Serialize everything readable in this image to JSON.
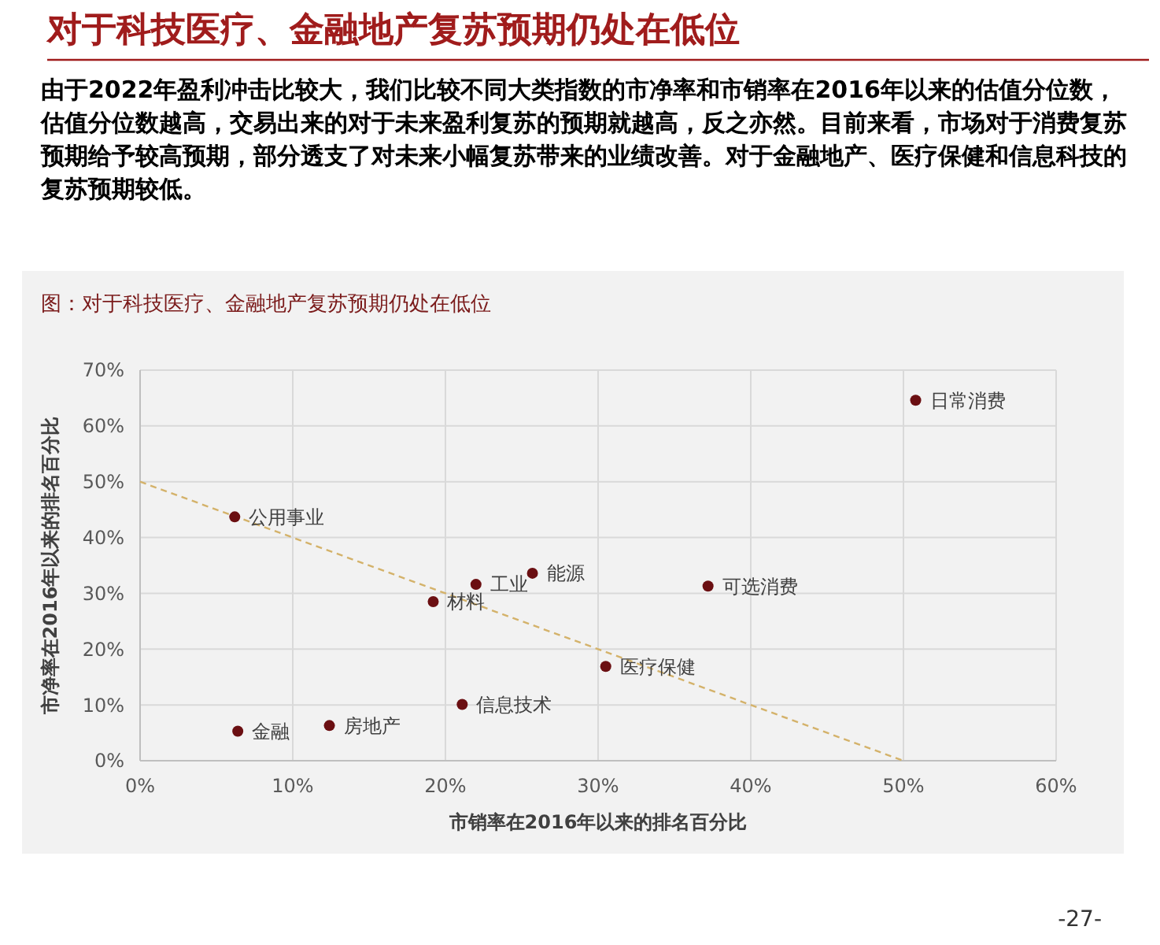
{
  "chart_data": {
    "type": "scatter",
    "title": "对于科技医疗、金融地产复苏预期仍处在低位",
    "subtitle": "由于2022年盈利冲击比较大，我们比较不同大类指数的市净率和市销率在2016年以来的估值分位数，估值分位数越高，交易出来的对于未来盈利复苏的预期就越高，反之亦然。目前来看，市场对于消费复苏预期给予较高预期，部分透支了对未来小幅复苏带来的业绩改善。对于金融地产、医疗保健和信息科技的复苏预期较低。",
    "xlabel": "市销率在2016年以来的排名百分比",
    "ylabel": "市净率在2016年以来的排名百分比",
    "xlim": [
      0,
      60
    ],
    "ylim": [
      0,
      70
    ],
    "xticks": [
      {
        "value": 0,
        "label": "0%"
      },
      {
        "value": 10,
        "label": "10%"
      },
      {
        "value": 20,
        "label": "20%"
      },
      {
        "value": 30,
        "label": "30%"
      },
      {
        "value": 40,
        "label": "40%"
      },
      {
        "value": 50,
        "label": "50%"
      },
      {
        "value": 60,
        "label": "60%"
      }
    ],
    "yticks": [
      {
        "value": 0,
        "label": "0%"
      },
      {
        "value": 10,
        "label": "10%"
      },
      {
        "value": 20,
        "label": "20%"
      },
      {
        "value": 30,
        "label": "30%"
      },
      {
        "value": 40,
        "label": "40%"
      },
      {
        "value": 50,
        "label": "50%"
      },
      {
        "value": 60,
        "label": "60%"
      },
      {
        "value": 70,
        "label": "70%"
      }
    ],
    "grid": true,
    "marker": "circle",
    "series": [
      {
        "color": "#6b0f12",
        "x": [
          6.2,
          6.4,
          12.4,
          19.2,
          22.0,
          25.7,
          21.1,
          30.5,
          37.2,
          50.8
        ],
        "values": [
          43.7,
          5.3,
          6.3,
          28.5,
          31.6,
          33.6,
          10.1,
          16.9,
          31.3,
          64.6
        ]
      },
      {
        "type": "line",
        "color": "#d4b26a",
        "line_style": "dashed",
        "marker": "none",
        "x": [
          0,
          50
        ],
        "values": [
          50,
          0
        ]
      }
    ],
    "annotations": [
      {
        "text": "公用事业",
        "x": 6.2,
        "y": 43.7
      },
      {
        "text": "金融",
        "x": 6.4,
        "y": 5.3
      },
      {
        "text": "房地产",
        "x": 12.4,
        "y": 6.3
      },
      {
        "text": "材料",
        "x": 19.2,
        "y": 28.5
      },
      {
        "text": "工业",
        "x": 22.0,
        "y": 31.6
      },
      {
        "text": "能源",
        "x": 25.7,
        "y": 33.6
      },
      {
        "text": "信息技术",
        "x": 21.1,
        "y": 10.1
      },
      {
        "text": "医疗保健",
        "x": 30.5,
        "y": 16.9
      },
      {
        "text": "可选消费",
        "x": 37.2,
        "y": 31.3
      },
      {
        "text": "日常消费",
        "x": 50.8,
        "y": 64.6
      },
      "图：对于科技医疗、金融地产复苏预期仍处在低位",
      "-27-"
    ]
  }
}
